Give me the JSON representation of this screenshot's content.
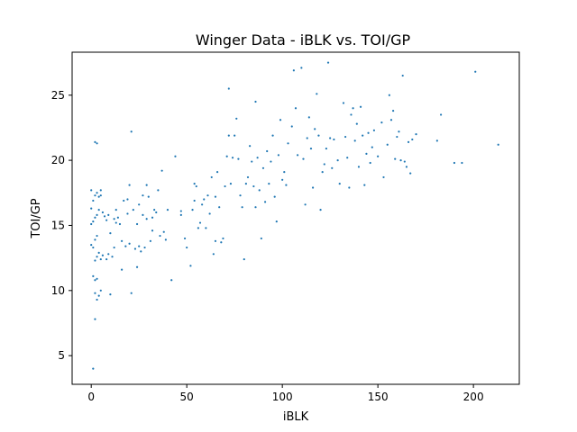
{
  "chart_data": {
    "type": "scatter",
    "title": "Winger Data - iBLK vs. TOI/GP",
    "xlabel": "iBLK",
    "ylabel": "TOI/GP",
    "xlim": [
      -10,
      224
    ],
    "ylim": [
      2.8,
      28.3
    ],
    "x_ticks": [
      0,
      50,
      100,
      150,
      200
    ],
    "y_ticks": [
      5,
      10,
      15,
      20,
      25
    ],
    "grid": false,
    "legend": "none",
    "marker_color": "#1f77b4",
    "series": [
      {
        "points": [
          [
            1,
            4.0
          ],
          [
            2,
            7.8
          ],
          [
            2,
            9.8
          ],
          [
            3,
            9.3
          ],
          [
            4,
            9.6
          ],
          [
            5,
            10.0
          ],
          [
            2,
            10.8
          ],
          [
            3,
            10.9
          ],
          [
            1,
            11.1
          ],
          [
            2,
            12.3
          ],
          [
            3,
            12.6
          ],
          [
            4,
            12.9
          ],
          [
            5,
            12.4
          ],
          [
            6,
            12.7
          ],
          [
            0,
            13.5
          ],
          [
            1,
            13.3
          ],
          [
            2,
            13.9
          ],
          [
            3,
            14.2
          ],
          [
            0,
            15.1
          ],
          [
            1,
            15.3
          ],
          [
            2,
            15.6
          ],
          [
            3,
            15.8
          ],
          [
            4,
            16.2
          ],
          [
            0,
            16.3
          ],
          [
            1,
            16.9
          ],
          [
            2,
            17.3
          ],
          [
            3,
            17.5
          ],
          [
            4,
            17.2
          ],
          [
            5,
            17.7
          ],
          [
            0,
            17.7
          ],
          [
            2,
            21.4
          ],
          [
            3,
            21.3
          ],
          [
            5,
            17.3
          ],
          [
            6,
            16.0
          ],
          [
            7,
            15.7
          ],
          [
            8,
            15.4
          ],
          [
            9,
            15.8
          ],
          [
            10,
            14.4
          ],
          [
            9,
            12.8
          ],
          [
            8,
            12.4
          ],
          [
            10,
            9.7
          ],
          [
            11,
            12.6
          ],
          [
            12,
            13.3
          ],
          [
            12,
            15.5
          ],
          [
            13,
            15.2
          ],
          [
            13,
            16.2
          ],
          [
            14,
            15.6
          ],
          [
            15,
            15.1
          ],
          [
            16,
            13.8
          ],
          [
            16,
            11.6
          ],
          [
            17,
            16.9
          ],
          [
            18,
            13.4
          ],
          [
            19,
            15.9
          ],
          [
            19,
            17.0
          ],
          [
            20,
            13.6
          ],
          [
            20,
            18.1
          ],
          [
            21,
            9.8
          ],
          [
            21,
            22.2
          ],
          [
            22,
            16.2
          ],
          [
            23,
            13.2
          ],
          [
            24,
            11.8
          ],
          [
            24,
            15.1
          ],
          [
            25,
            16.6
          ],
          [
            25,
            13.4
          ],
          [
            26,
            13.0
          ],
          [
            27,
            15.8
          ],
          [
            27,
            17.3
          ],
          [
            28,
            13.3
          ],
          [
            29,
            15.5
          ],
          [
            29,
            18.1
          ],
          [
            30,
            17.2
          ],
          [
            31,
            13.8
          ],
          [
            32,
            14.6
          ],
          [
            32,
            15.6
          ],
          [
            33,
            16.2
          ],
          [
            34,
            16.0
          ],
          [
            35,
            17.7
          ],
          [
            36,
            14.2
          ],
          [
            37,
            19.2
          ],
          [
            38,
            14.5
          ],
          [
            39,
            13.9
          ],
          [
            40,
            16.2
          ],
          [
            42,
            10.8
          ],
          [
            44,
            20.3
          ],
          [
            47,
            15.8
          ],
          [
            47,
            16.1
          ],
          [
            49,
            14.0
          ],
          [
            50,
            13.3
          ],
          [
            52,
            11.9
          ],
          [
            53,
            16.2
          ],
          [
            54,
            16.9
          ],
          [
            54,
            18.2
          ],
          [
            55,
            18.0
          ],
          [
            56,
            14.8
          ],
          [
            57,
            15.2
          ],
          [
            58,
            16.6
          ],
          [
            59,
            17.0
          ],
          [
            60,
            14.8
          ],
          [
            61,
            17.3
          ],
          [
            62,
            15.9
          ],
          [
            63,
            18.7
          ],
          [
            64,
            12.8
          ],
          [
            65,
            13.8
          ],
          [
            65,
            17.2
          ],
          [
            66,
            19.1
          ],
          [
            67,
            16.4
          ],
          [
            68,
            13.7
          ],
          [
            69,
            14.0
          ],
          [
            70,
            18.0
          ],
          [
            71,
            20.3
          ],
          [
            72,
            21.9
          ],
          [
            72,
            25.5
          ],
          [
            73,
            18.2
          ],
          [
            74,
            20.2
          ],
          [
            75,
            21.9
          ],
          [
            76,
            23.2
          ],
          [
            77,
            20.1
          ],
          [
            78,
            17.3
          ],
          [
            79,
            16.4
          ],
          [
            80,
            12.4
          ],
          [
            81,
            18.2
          ],
          [
            82,
            18.7
          ],
          [
            83,
            21.1
          ],
          [
            84,
            19.9
          ],
          [
            85,
            18.0
          ],
          [
            86,
            24.5
          ],
          [
            86,
            16.4
          ],
          [
            87,
            20.2
          ],
          [
            88,
            17.7
          ],
          [
            89,
            14.0
          ],
          [
            90,
            19.4
          ],
          [
            91,
            16.8
          ],
          [
            92,
            20.7
          ],
          [
            93,
            18.2
          ],
          [
            94,
            19.9
          ],
          [
            95,
            21.9
          ],
          [
            96,
            17.2
          ],
          [
            97,
            15.3
          ],
          [
            98,
            20.4
          ],
          [
            99,
            23.1
          ],
          [
            100,
            18.5
          ],
          [
            101,
            19.1
          ],
          [
            102,
            18.1
          ],
          [
            103,
            21.3
          ],
          [
            105,
            22.6
          ],
          [
            106,
            26.9
          ],
          [
            107,
            24.0
          ],
          [
            108,
            20.4
          ],
          [
            110,
            27.1
          ],
          [
            111,
            20.1
          ],
          [
            112,
            16.6
          ],
          [
            113,
            21.7
          ],
          [
            114,
            23.3
          ],
          [
            115,
            20.9
          ],
          [
            116,
            17.9
          ],
          [
            117,
            22.4
          ],
          [
            118,
            25.1
          ],
          [
            119,
            21.9
          ],
          [
            120,
            16.2
          ],
          [
            121,
            19.1
          ],
          [
            122,
            19.7
          ],
          [
            123,
            20.9
          ],
          [
            124,
            27.5
          ],
          [
            125,
            21.7
          ],
          [
            126,
            19.4
          ],
          [
            127,
            21.6
          ],
          [
            129,
            20.0
          ],
          [
            130,
            18.2
          ],
          [
            132,
            24.4
          ],
          [
            133,
            21.8
          ],
          [
            134,
            20.2
          ],
          [
            135,
            17.9
          ],
          [
            136,
            23.5
          ],
          [
            137,
            24.0
          ],
          [
            138,
            21.5
          ],
          [
            139,
            22.8
          ],
          [
            140,
            19.5
          ],
          [
            141,
            24.1
          ],
          [
            142,
            21.9
          ],
          [
            143,
            18.1
          ],
          [
            144,
            20.5
          ],
          [
            145,
            22.1
          ],
          [
            146,
            19.8
          ],
          [
            147,
            21.0
          ],
          [
            148,
            22.3
          ],
          [
            150,
            20.3
          ],
          [
            152,
            22.9
          ],
          [
            153,
            18.7
          ],
          [
            155,
            21.2
          ],
          [
            156,
            25.0
          ],
          [
            157,
            23.1
          ],
          [
            158,
            23.8
          ],
          [
            159,
            20.1
          ],
          [
            160,
            21.8
          ],
          [
            161,
            22.2
          ],
          [
            162,
            20.0
          ],
          [
            163,
            26.5
          ],
          [
            164,
            19.9
          ],
          [
            165,
            19.5
          ],
          [
            166,
            21.4
          ],
          [
            167,
            19.0
          ],
          [
            168,
            21.6
          ],
          [
            170,
            22.0
          ],
          [
            181,
            21.5
          ],
          [
            183,
            23.5
          ],
          [
            190,
            19.8
          ],
          [
            194,
            19.8
          ],
          [
            201,
            26.8
          ],
          [
            213,
            21.2
          ]
        ]
      }
    ]
  }
}
